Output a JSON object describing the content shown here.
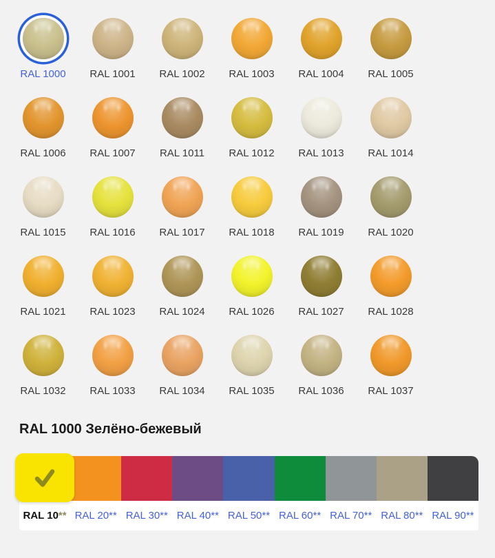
{
  "page": {
    "background": "#F2F2F2"
  },
  "colors": {
    "selection_ring": "#2B61D8",
    "link": "#4462DA",
    "ball_label": "#3A3A3A",
    "checkmark": "#8E8A1B"
  },
  "palette_grid": {
    "items": [
      {
        "label": "RAL 1000",
        "color": "#C9C08D",
        "selected": true
      },
      {
        "label": "RAL 1001",
        "color": "#CDB488",
        "selected": false
      },
      {
        "label": "RAL 1002",
        "color": "#CDB479",
        "selected": false
      },
      {
        "label": "RAL 1003",
        "color": "#F2A835",
        "selected": false
      },
      {
        "label": "RAL 1004",
        "color": "#E0A32B",
        "selected": false
      },
      {
        "label": "RAL 1005",
        "color": "#C69B40",
        "selected": false
      },
      {
        "label": "RAL 1006",
        "color": "#E2952E",
        "selected": false
      },
      {
        "label": "RAL 1007",
        "color": "#ED9530",
        "selected": false
      },
      {
        "label": "RAL 1011",
        "color": "#A98B62",
        "selected": false
      },
      {
        "label": "RAL 1012",
        "color": "#D5BC40",
        "selected": false
      },
      {
        "label": "RAL 1013",
        "color": "#ECEADC",
        "selected": false
      },
      {
        "label": "RAL 1014",
        "color": "#E0C9A4",
        "selected": false
      },
      {
        "label": "RAL 1015",
        "color": "#E7DCC4",
        "selected": false
      },
      {
        "label": "RAL 1016",
        "color": "#E5E23E",
        "selected": false
      },
      {
        "label": "RAL 1017",
        "color": "#F0A455",
        "selected": false
      },
      {
        "label": "RAL 1018",
        "color": "#F7CB3D",
        "selected": false
      },
      {
        "label": "RAL 1019",
        "color": "#A4937F",
        "selected": false
      },
      {
        "label": "RAL 1020",
        "color": "#A49B6E",
        "selected": false
      },
      {
        "label": "RAL 1021",
        "color": "#F0B02F",
        "selected": false
      },
      {
        "label": "RAL 1023",
        "color": "#F0B233",
        "selected": false
      },
      {
        "label": "RAL 1024",
        "color": "#AE9557",
        "selected": false
      },
      {
        "label": "RAL 1026",
        "color": "#F2F32B",
        "selected": false
      },
      {
        "label": "RAL 1027",
        "color": "#8F7D33",
        "selected": false
      },
      {
        "label": "RAL 1028",
        "color": "#F39B2B",
        "selected": false
      },
      {
        "label": "RAL 1032",
        "color": "#CFB23B",
        "selected": false
      },
      {
        "label": "RAL 1033",
        "color": "#F2A044",
        "selected": false
      },
      {
        "label": "RAL 1034",
        "color": "#E9A362",
        "selected": false
      },
      {
        "label": "RAL 1035",
        "color": "#DDD4AE",
        "selected": false
      },
      {
        "label": "RAL 1036",
        "color": "#C3B383",
        "selected": false
      },
      {
        "label": "RAL 1037",
        "color": "#F0992B",
        "selected": false
      }
    ]
  },
  "detail": {
    "title": "RAL 1000 Зелёно-бежевый"
  },
  "group_tabs": {
    "items": [
      {
        "label": "RAL 10**",
        "color": "#F9E300",
        "selected": true
      },
      {
        "label": "RAL 20**",
        "color": "#F3921E",
        "selected": false
      },
      {
        "label": "RAL 30**",
        "color": "#CE2B44",
        "selected": false
      },
      {
        "label": "RAL 40**",
        "color": "#6D4C86",
        "selected": false
      },
      {
        "label": "RAL 50**",
        "color": "#4961A8",
        "selected": false
      },
      {
        "label": "RAL 60**",
        "color": "#0E8C3C",
        "selected": false
      },
      {
        "label": "RAL 70**",
        "color": "#909598",
        "selected": false
      },
      {
        "label": "RAL 80**",
        "color": "#ABA186",
        "selected": false
      },
      {
        "label": "RAL 90**",
        "color": "#404042",
        "selected": false
      }
    ]
  }
}
